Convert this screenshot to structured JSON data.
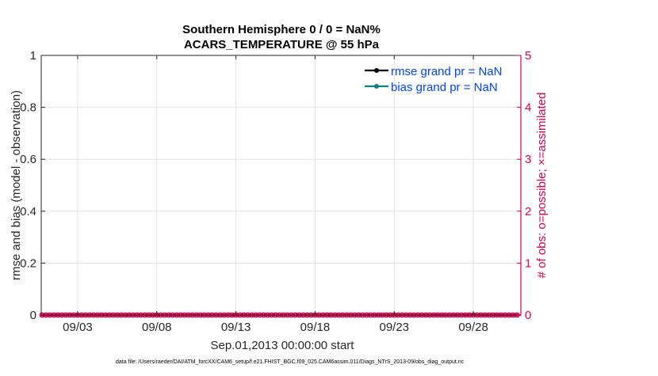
{
  "chart_data": {
    "type": "line",
    "title_lines": [
      "Southern Hemisphere 0 / 0 = NaN%",
      "ACARS_TEMPERATURE @ 55 hPa"
    ],
    "xlabel": "Sep.01,2013 00:00:00 start",
    "ylabel_left": "rmse and bias (model - observation)",
    "ylabel_right": "# of obs: o=possible; ×=assimilated",
    "xtick_labels": [
      "09/03",
      "09/08",
      "09/13",
      "09/18",
      "09/23",
      "09/28"
    ],
    "xtick_days": [
      3,
      8,
      13,
      18,
      23,
      28
    ],
    "xlim_days": [
      0.7,
      31
    ],
    "ylim_left": [
      0,
      1
    ],
    "yticks_left": [
      "0",
      "0.2",
      "0.4",
      "0.6",
      "0.8",
      "1"
    ],
    "ylim_right": [
      0,
      5
    ],
    "yticks_right": [
      "0",
      "1",
      "2",
      "3",
      "4",
      "5"
    ],
    "grid": true,
    "legend_placement": "top-right",
    "series": [
      {
        "name": "rmse grand pr = NaN",
        "color": "#000000",
        "values": []
      },
      {
        "name": "bias grand pr = NaN",
        "color": "#0f7f7f",
        "values": []
      }
    ],
    "obs_count_interval_hours": 6,
    "obs_possible": [
      0,
      0,
      0,
      0,
      0,
      0,
      0,
      0,
      0,
      0,
      0,
      0,
      0,
      0,
      0,
      0,
      0,
      0,
      0,
      0,
      0,
      0,
      0,
      0,
      0,
      0,
      0,
      0,
      0,
      0,
      0,
      0,
      0,
      0,
      0,
      0,
      0,
      0,
      0,
      0,
      0,
      0,
      0,
      0,
      0,
      0,
      0,
      0,
      0,
      0,
      0,
      0,
      0,
      0,
      0,
      0,
      0,
      0,
      0,
      0,
      0,
      0,
      0,
      0,
      0,
      0,
      0,
      0,
      0,
      0,
      0,
      0,
      0,
      0,
      0,
      0,
      0,
      0,
      0,
      0,
      0,
      0,
      0,
      0,
      0,
      0,
      0,
      0,
      0,
      0,
      0,
      0,
      0,
      0,
      0,
      0,
      0,
      0,
      0,
      0,
      0,
      0,
      0,
      0,
      0,
      0,
      0,
      0,
      0,
      0,
      0,
      0,
      0,
      0,
      0,
      0,
      0,
      0,
      0,
      0,
      0
    ],
    "obs_assimilated": [
      0,
      0,
      0,
      0,
      0,
      0,
      0,
      0,
      0,
      0,
      0,
      0,
      0,
      0,
      0,
      0,
      0,
      0,
      0,
      0,
      0,
      0,
      0,
      0,
      0,
      0,
      0,
      0,
      0,
      0,
      0,
      0,
      0,
      0,
      0,
      0,
      0,
      0,
      0,
      0,
      0,
      0,
      0,
      0,
      0,
      0,
      0,
      0,
      0,
      0,
      0,
      0,
      0,
      0,
      0,
      0,
      0,
      0,
      0,
      0,
      0,
      0,
      0,
      0,
      0,
      0,
      0,
      0,
      0,
      0,
      0,
      0,
      0,
      0,
      0,
      0,
      0,
      0,
      0,
      0,
      0,
      0,
      0,
      0,
      0,
      0,
      0,
      0,
      0,
      0,
      0,
      0,
      0,
      0,
      0,
      0,
      0,
      0,
      0,
      0,
      0,
      0,
      0,
      0,
      0,
      0,
      0,
      0,
      0,
      0,
      0,
      0,
      0,
      0,
      0,
      0,
      0,
      0,
      0,
      0,
      0
    ],
    "colors": {
      "obs": "#d9004c",
      "legend_text": "#0044ee",
      "axis": "#262626"
    }
  },
  "footer": "data file: /Users/raeder/DAI/ATM_forcXX/CAM6_setup/f.e21.FHIST_BGC.f09_025.CAM6assim.011/Diags_NTrS_2013-09/obs_diag_output.nc"
}
